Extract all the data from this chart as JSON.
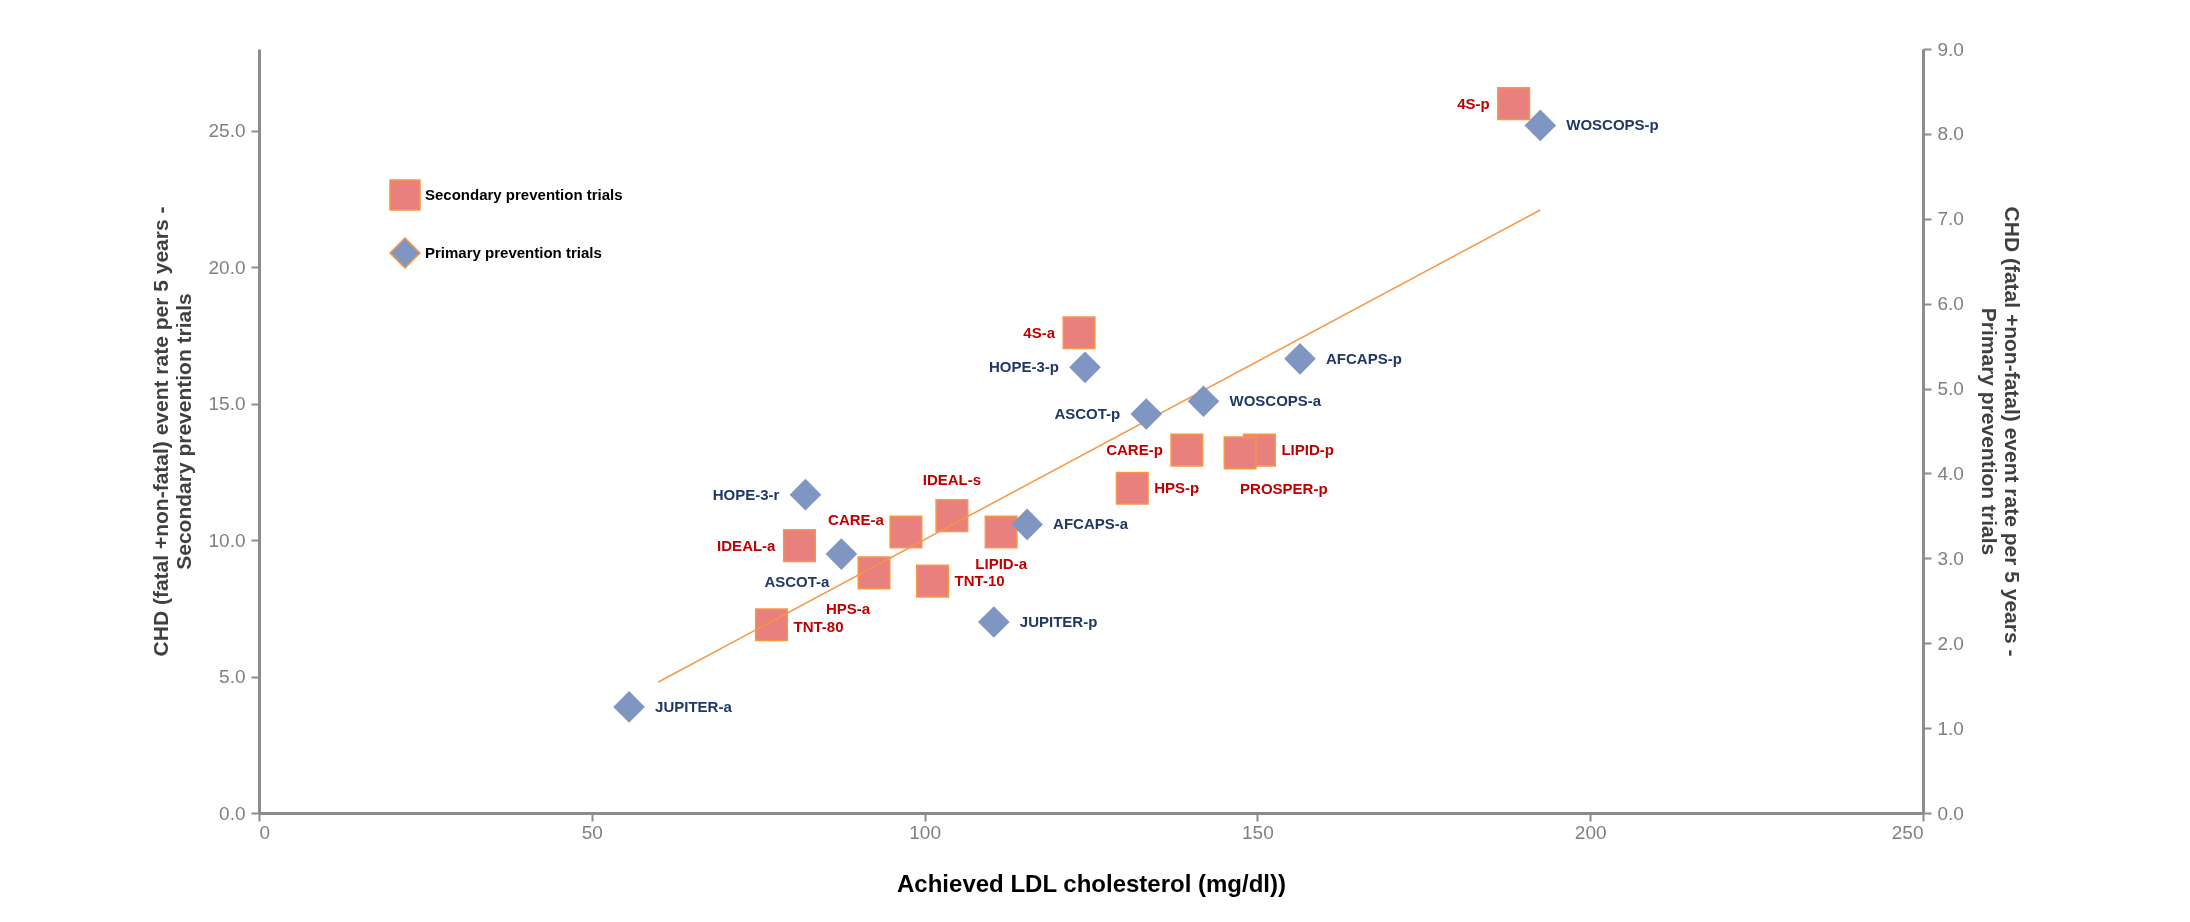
{
  "chart_data": {
    "type": "scatter",
    "xlabel": "Achieved LDL cholesterol (mg/dl))",
    "ylabel": "CHD (fatal +non-fatal) event rate per 5 years -\nSecondary prevention trials",
    "y2label": "CHD (fatal +non-fatal) event rate per 5 years -\nPrimary prevention trials",
    "xlim": [
      0,
      250
    ],
    "xticks": [
      0,
      50,
      100,
      150,
      200,
      250
    ],
    "ylim": [
      0,
      28
    ],
    "yticks": [
      {
        "value": 0,
        "label": "0.0"
      },
      {
        "value": 5,
        "label": "5.0"
      },
      {
        "value": 10,
        "label": "10.0"
      },
      {
        "value": 15,
        "label": "15.0"
      },
      {
        "value": 20,
        "label": "20.0"
      },
      {
        "value": 25,
        "label": "25.0"
      }
    ],
    "y2lim": [
      0,
      9
    ],
    "y2ticks": [
      {
        "value": 0,
        "label": "0.0"
      },
      {
        "value": 1,
        "label": "1.0"
      },
      {
        "value": 2,
        "label": "2.0"
      },
      {
        "value": 3,
        "label": "3.0"
      },
      {
        "value": 4,
        "label": "4.0"
      },
      {
        "value": 5,
        "label": "5.0"
      },
      {
        "value": 6,
        "label": "6.0"
      },
      {
        "value": 7,
        "label": "7.0"
      },
      {
        "value": 8,
        "label": "8.0"
      },
      {
        "value": 9,
        "label": "9.0"
      }
    ],
    "grid": false,
    "legend": "top left",
    "series": [
      {
        "name": "Secondary prevention trials",
        "color": "#e8807e",
        "marker": "square",
        "x": [
          188.5,
          123.2,
          139.4,
          150.3,
          147.4,
          131.2,
          104.1,
          97.2,
          111.5,
          81.2,
          92.4,
          101.2,
          77.0
        ],
        "values": [
          26.0,
          17.6,
          13.3,
          13.3,
          13.2,
          11.9,
          10.9,
          10.3,
          10.3,
          9.8,
          8.8,
          8.5,
          6.9
        ]
      },
      {
        "name": "Primary prevention trials",
        "color": "#7f96c3",
        "marker": "diamond",
        "axis": "y2",
        "x": [
          192.5,
          156.4,
          141.9,
          133.3,
          124.1,
          115.4,
          82.1,
          87.5,
          110.4,
          55.6
        ],
        "values": [
          8.1,
          5.35,
          4.85,
          4.7,
          5.25,
          3.4,
          3.75,
          3.05,
          2.25,
          1.25
        ]
      },
      {
        "type": "line",
        "color": "#f79646",
        "x": [
          60,
          192.5
        ],
        "values": [
          4.8,
          22.1
        ]
      }
    ],
    "annotations": [
      {
        "text": "4S-p",
        "x": 188.5,
        "y": 26.0
      },
      {
        "text": "4S-a",
        "x": 123.2,
        "y": 17.6
      },
      {
        "text": "CARE-p",
        "x": 139.4,
        "y": 13.3
      },
      {
        "text": "LIPID-p",
        "x": 150.3,
        "y": 13.3
      },
      {
        "text": "PROSPER-p",
        "x": 147.4,
        "y": 13.2
      },
      {
        "text": "HPS-p",
        "x": 131.2,
        "y": 11.9
      },
      {
        "text": "IDEAL-s",
        "x": 104.1,
        "y": 10.9
      },
      {
        "text": "CARE-a",
        "x": 97.2,
        "y": 10.3
      },
      {
        "text": "LIPID-a",
        "x": 111.5,
        "y": 10.3
      },
      {
        "text": "IDEAL-a",
        "x": 81.2,
        "y": 9.8
      },
      {
        "text": "HPS-a",
        "x": 92.4,
        "y": 8.8
      },
      {
        "text": "TNT-10",
        "x": 101.2,
        "y": 8.5
      },
      {
        "text": "TNT-80",
        "x": 77.0,
        "y": 6.9
      },
      "WOSCOPS-p",
      "AFCAPS-p",
      "WOSCOPS-a",
      "ASCOT-p",
      "HOPE-3-p",
      "AFCAPS-a",
      "HOPE-3-r",
      "ASCOT-a",
      "JUPITER-p",
      "JUPITER-a"
    ]
  }
}
